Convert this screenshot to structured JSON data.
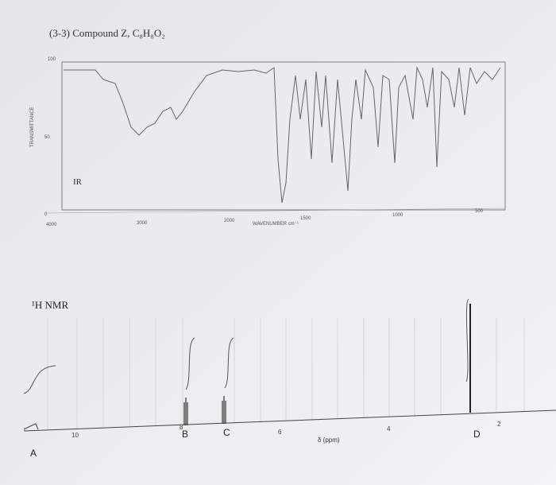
{
  "header": {
    "title": "(3-3) Compound Z, C₈H₈O₂"
  },
  "ir": {
    "label": "IR",
    "y_axis_label": "TRANSMITTANCE",
    "y_ticks": [
      "100",
      "50",
      "0"
    ],
    "x_ticks": [
      "4000",
      "3000",
      "2000",
      "1500",
      "1000",
      "500"
    ],
    "x_axis_label": "WAVENUMBER cm⁻¹"
  },
  "nmr": {
    "label": "¹H NMR",
    "x_ticks": [
      "10",
      "8",
      "6",
      "4",
      "2"
    ],
    "x_axis_label": "δ (ppm)",
    "peaks": [
      "A",
      "B",
      "C",
      "D"
    ]
  }
}
